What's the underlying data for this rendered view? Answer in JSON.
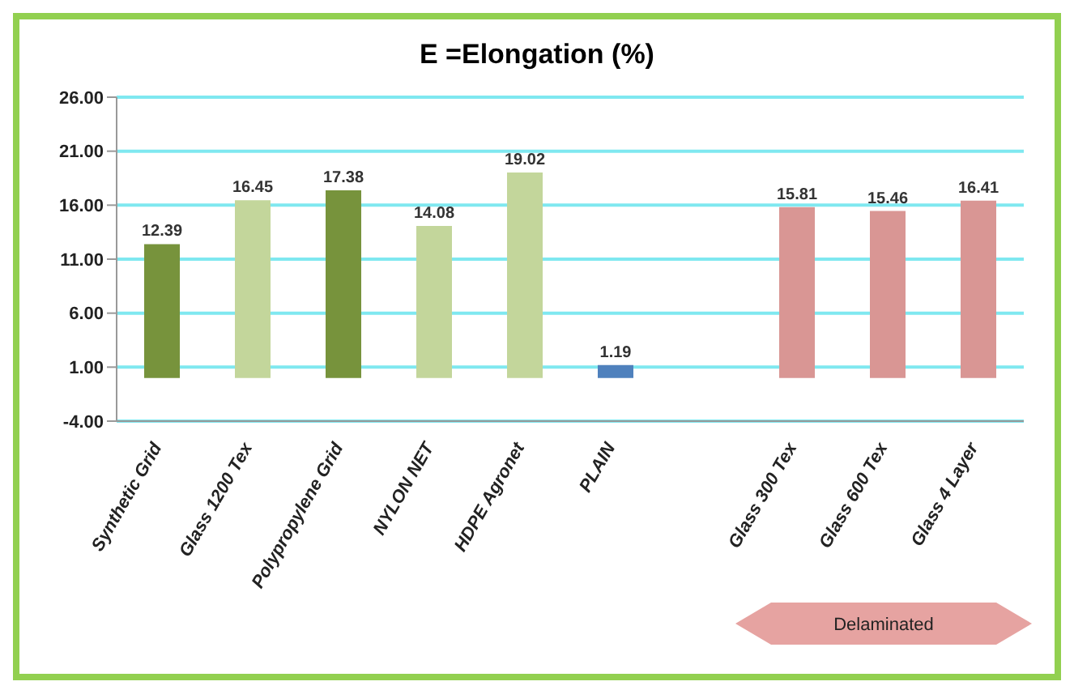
{
  "chart_data": {
    "type": "bar",
    "title": "E =Elongation (%)",
    "categories": [
      "Synthetic Grid",
      "Glass 1200 Tex",
      "Polypropylene Grid",
      "NYLON NET",
      "HDPE Agronet",
      "PLAIN",
      null,
      "Glass  300 Tex",
      "Glass  600 Tex",
      "Glass  4 Layer"
    ],
    "values": [
      12.39,
      16.45,
      17.38,
      14.08,
      19.02,
      1.19,
      null,
      15.81,
      15.46,
      16.41
    ],
    "colors": [
      "#77933c",
      "#c3d69b",
      "#77933c",
      "#c3d69b",
      "#c3d69b",
      "#4f81bd",
      "#ffffff",
      "#d99694",
      "#d99694",
      "#d99694"
    ],
    "ylim": [
      -4,
      26
    ],
    "yticks": [
      {
        "value": -4,
        "label": "-4.00"
      },
      {
        "value": 1,
        "label": "1.00"
      },
      {
        "value": 6,
        "label": "6.00"
      },
      {
        "value": 11,
        "label": "11.00"
      },
      {
        "value": 16,
        "label": "16.00"
      },
      {
        "value": 21,
        "label": "21.00"
      },
      {
        "value": 26,
        "label": "26.00"
      }
    ],
    "grid": "y",
    "data_labels": true,
    "legend": false,
    "annotations": [
      "Delaminated"
    ]
  }
}
